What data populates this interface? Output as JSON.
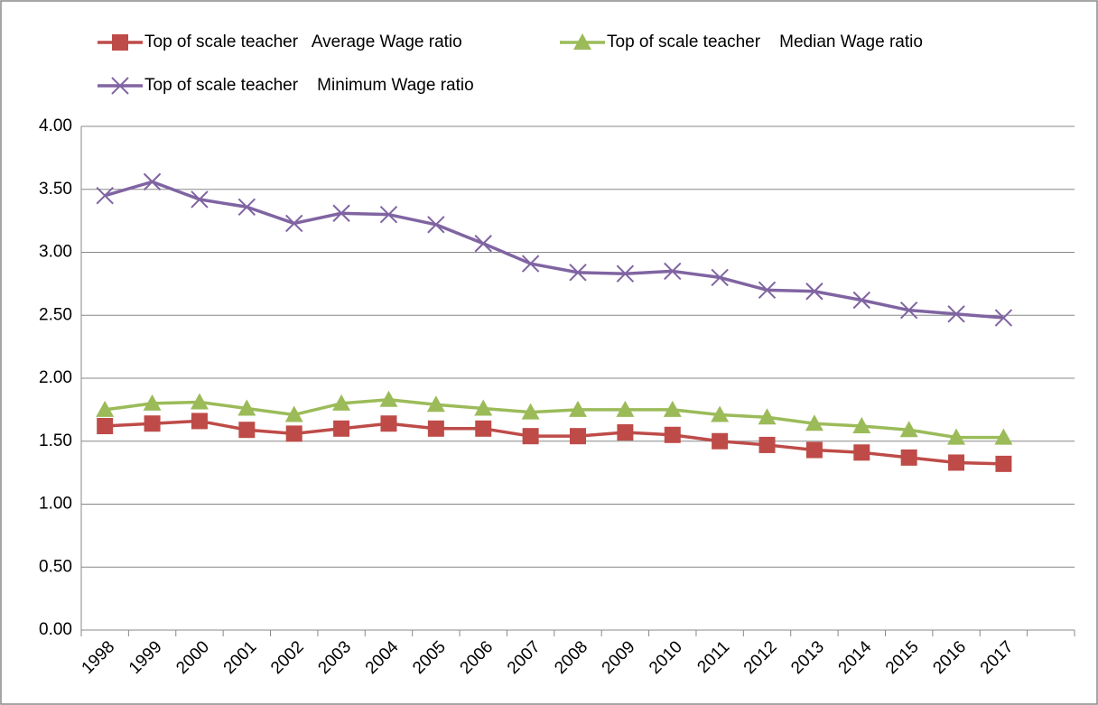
{
  "chart_data": {
    "type": "line",
    "categories": [
      "1998",
      "1999",
      "2000",
      "2001",
      "2002",
      "2003",
      "2004",
      "2005",
      "2006",
      "2007",
      "2008",
      "2009",
      "2010",
      "2011",
      "2012",
      "2013",
      "2014",
      "2015",
      "2016",
      "2017",
      null
    ],
    "series": [
      {
        "name": "Top of scale teacher   Average Wage ratio",
        "color": "#be4b48",
        "marker": "square",
        "values": [
          1.62,
          1.64,
          1.66,
          1.59,
          1.56,
          1.6,
          1.64,
          1.6,
          1.6,
          1.54,
          1.54,
          1.57,
          1.55,
          1.5,
          1.47,
          1.43,
          1.41,
          1.37,
          1.33,
          1.32,
          null
        ]
      },
      {
        "name": "Top of scale teacher    Median Wage ratio",
        "color": "#9bbb59",
        "marker": "triangle",
        "values": [
          1.75,
          1.8,
          1.81,
          1.76,
          1.71,
          1.8,
          1.83,
          1.79,
          1.76,
          1.73,
          1.75,
          1.75,
          1.75,
          1.71,
          1.69,
          1.64,
          1.62,
          1.59,
          1.53,
          1.53,
          null
        ]
      },
      {
        "name": "Top of scale teacher    Minimum Wage ratio",
        "color": "#8064a2",
        "marker": "x",
        "values": [
          3.45,
          3.56,
          3.42,
          3.36,
          3.23,
          3.31,
          3.3,
          3.22,
          3.07,
          2.91,
          2.84,
          2.83,
          2.85,
          2.8,
          2.7,
          2.69,
          2.62,
          2.54,
          2.51,
          2.48,
          null
        ]
      }
    ],
    "ylim": [
      0,
      4
    ],
    "yticks": [
      {
        "value": 0,
        "label": "0.00"
      },
      {
        "value": 0.5,
        "label": "0.50"
      },
      {
        "value": 1,
        "label": "1.00"
      },
      {
        "value": 1.5,
        "label": "1.50"
      },
      {
        "value": 2,
        "label": "2.00"
      },
      {
        "value": 2.5,
        "label": "2.50"
      },
      {
        "value": 3,
        "label": "3.00"
      },
      {
        "value": 3.5,
        "label": "3.50"
      },
      {
        "value": 4,
        "label": "4.00"
      }
    ],
    "grid": true,
    "legend": "top"
  }
}
